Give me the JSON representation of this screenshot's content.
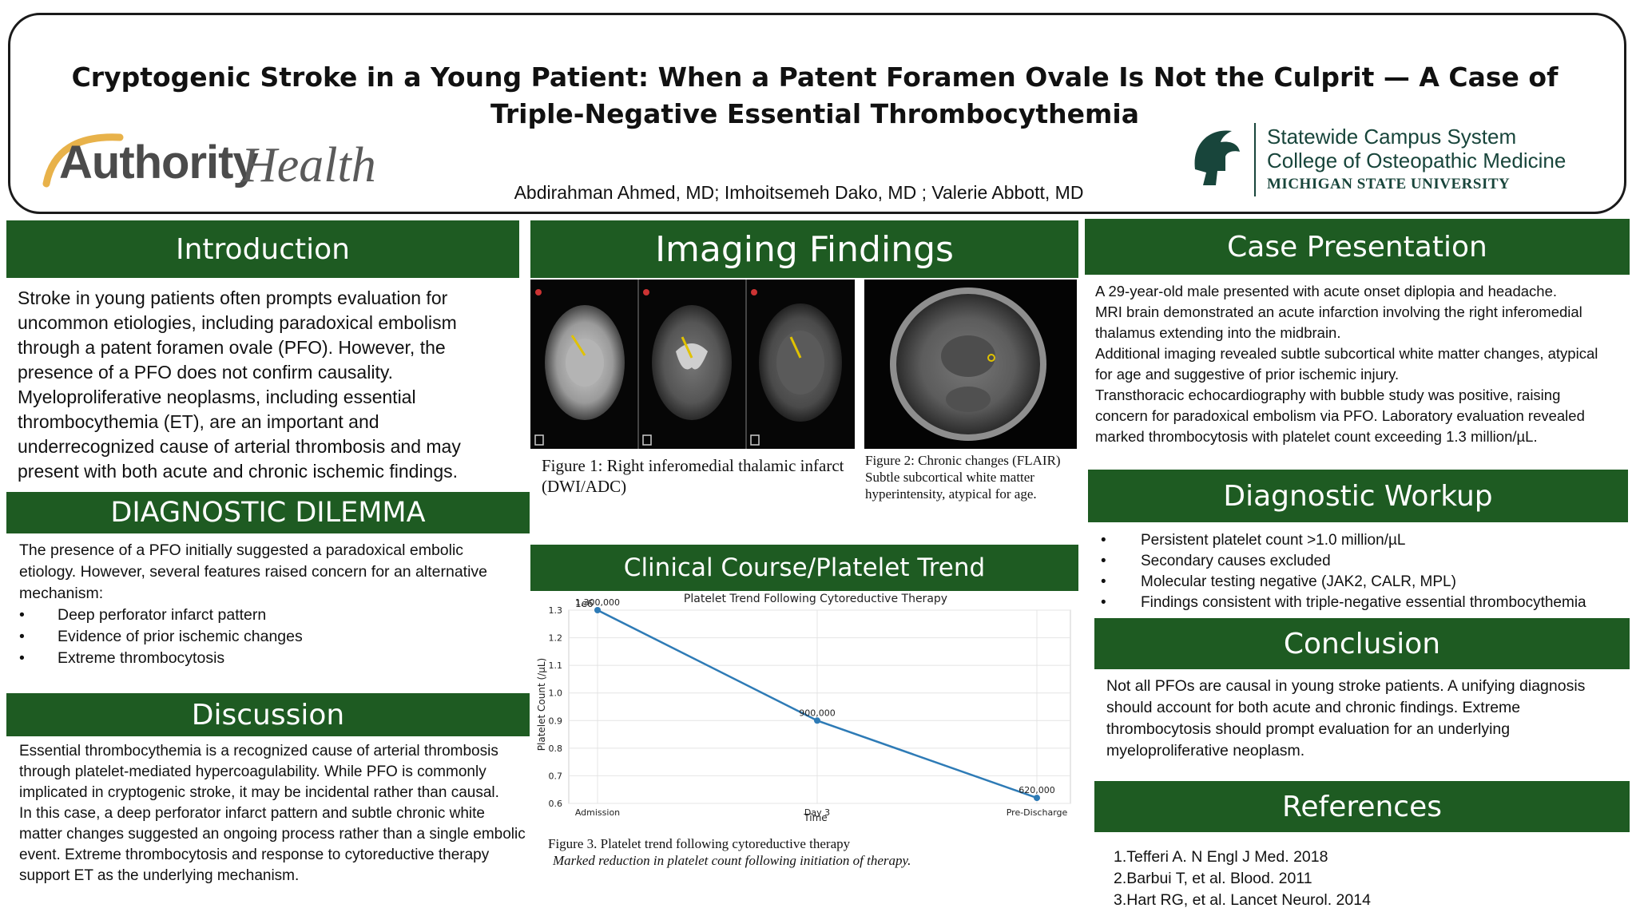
{
  "header": {
    "title": "Cryptogenic Stroke in a Young Patient: When a Patent Foramen Ovale Is Not the Culprit — A Case of Triple-Negative Essential Thrombocythemia",
    "authors": "Abdirahman Ahmed, MD; Imhoitsemeh Dako, MD ; Valerie Abbott, MD",
    "left_logo": {
      "part1": "Authority",
      "part2": "Health"
    },
    "right_logo": {
      "line1": "Statewide Campus System",
      "line2": "College of Osteopathic Medicine",
      "line3": "MICHIGAN STATE UNIVERSITY"
    }
  },
  "introduction": {
    "heading": "Introduction",
    "text": "Stroke in young patients often prompts evaluation for uncommon etiologies, including paradoxical embolism through a patent foramen ovale (PFO). However, the presence of a PFO does not confirm causality. Myeloproliferative neoplasms, including essential thrombocythemia (ET), are an important and underrecognized cause of arterial thrombosis and may present with both acute and chronic ischemic findings."
  },
  "dilemma": {
    "heading": "DIAGNOSTIC DILEMMA",
    "text": "The presence of a PFO initially suggested a paradoxical embolic etiology. However, several features raised concern for an alternative mechanism:",
    "bullets": [
      "Deep perforator infarct pattern",
      "Evidence of prior ischemic changes",
      "Extreme thrombocytosis"
    ]
  },
  "discussion": {
    "heading": "Discussion",
    "p1": "Essential thrombocythemia is a recognized cause of arterial thrombosis through platelet-mediated hypercoagulability. While PFO is commonly implicated in cryptogenic stroke, it may be incidental rather than causal.",
    "p2": "In this case, a deep perforator infarct pattern and subtle chronic white matter changes suggested an ongoing process rather than a single embolic event. Extreme thrombocytosis and response to cytoreductive therapy support ET as the underlying mechanism."
  },
  "imaging": {
    "heading": "Imaging Findings",
    "fig1_label": "Figure 1",
    "fig1_caption": ": Right inferomedial thalamic infarct (DWI/ADC)",
    "fig2_label": "Figure 2",
    "fig2_caption": ": Chronic changes (FLAIR)",
    "fig2_sub": "Subtle subcortical white matter hyperintensity, atypical for age."
  },
  "clinical_course": {
    "heading": "Clinical Course/Platelet Trend",
    "caption": "Figure 3. Platelet trend following cytoreductive therapy",
    "subcaption": "Marked reduction in platelet count following initiation of therapy."
  },
  "chart_data": {
    "type": "line",
    "title": "Platelet Trend Following Cytoreductive Therapy",
    "xlabel": "Time",
    "ylabel": "Platelet Count (/µL)",
    "scale_label": "1e6",
    "categories": [
      "Admission",
      "Day 3",
      "Pre-Discharge"
    ],
    "values": [
      1300000,
      900000,
      620000
    ],
    "data_labels": [
      "1,300,000",
      "900,000",
      "620,000"
    ],
    "yticks": [
      "0.6",
      "0.7",
      "0.8",
      "0.9",
      "1.0",
      "1.1",
      "1.2",
      "1.3"
    ],
    "ylim": [
      0.6,
      1.3
    ],
    "grid": true,
    "line_color": "#2e7bb6"
  },
  "case_presentation": {
    "heading": "Case Presentation",
    "lines": [
      "A 29-year-old male presented with acute onset diplopia and headache.",
      "MRI brain demonstrated an acute infarction involving the right inferomedial thalamus extending into the midbrain.",
      "Additional imaging revealed subtle subcortical white matter changes, atypical for age and suggestive of prior ischemic injury.",
      "Transthoracic echocardiography with bubble study was positive, raising concern for paradoxical embolism via PFO. Laboratory evaluation revealed marked thrombocytosis with platelet count exceeding 1.3 million/µL."
    ]
  },
  "workup": {
    "heading": "Diagnostic Workup",
    "bullets": [
      "Persistent platelet count >1.0 million/µL",
      "Secondary causes excluded",
      "Molecular testing negative (JAK2, CALR, MPL)",
      "Findings consistent with triple-negative essential thrombocythemia"
    ]
  },
  "conclusion": {
    "heading": "Conclusion",
    "text": "Not all PFOs are causal in young stroke patients. A unifying diagnosis should account for both acute and chronic findings. Extreme thrombocytosis should prompt evaluation for an underlying myeloproliferative neoplasm."
  },
  "references": {
    "heading": "References",
    "items": [
      "1.Tefferi A. N Engl J Med. 2018",
      "2.Barbui T, et al. Blood. 2011",
      "3.Hart RG, et al. Lancet Neurol. 2014"
    ]
  },
  "colors": {
    "section_bar": "#1e5b22",
    "msu_green": "#18453b",
    "logo_gold": "#e8b24a"
  }
}
